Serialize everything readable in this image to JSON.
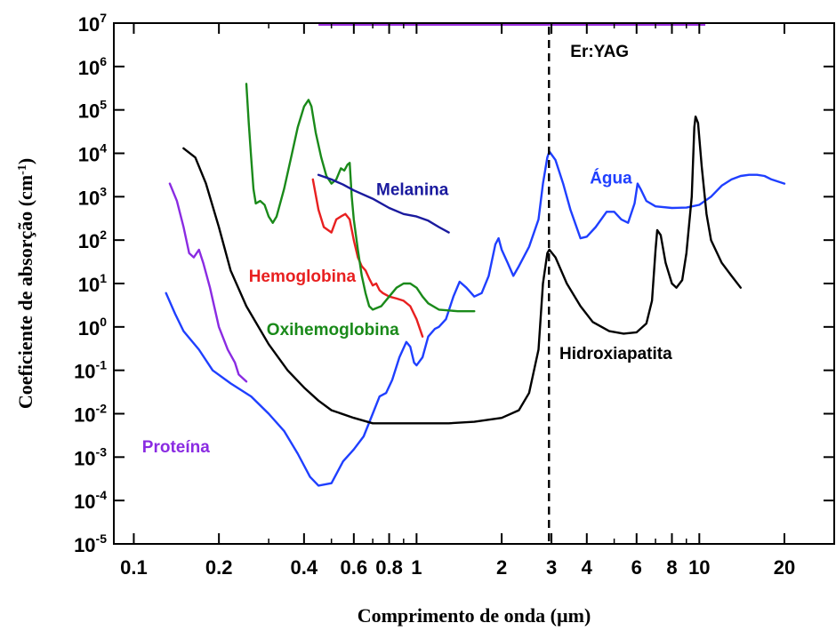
{
  "chart_data": {
    "type": "line",
    "xlabel": "Comprimento de onda (µm)",
    "ylabel_main": "Coeficiente de absorção (cm",
    "ylabel_sup": "-1",
    "ylabel_close": ")",
    "x_scale": "log",
    "y_scale": "log",
    "xlim": [
      0.085,
      30
    ],
    "ylim": [
      1e-05,
      10000000.0
    ],
    "grid": false,
    "x_ticks": [
      {
        "value": 0.1,
        "label": "0.1"
      },
      {
        "value": 0.2,
        "label": "0.2"
      },
      {
        "value": 0.4,
        "label": "0.4"
      },
      {
        "value": 0.6,
        "label": "0.6"
      },
      {
        "value": 0.8,
        "label": "0.8"
      },
      {
        "value": 1,
        "label": "1"
      },
      {
        "value": 2,
        "label": "2"
      },
      {
        "value": 3,
        "label": "3"
      },
      {
        "value": 4,
        "label": "4"
      },
      {
        "value": 6,
        "label": "6"
      },
      {
        "value": 8,
        "label": "8"
      },
      {
        "value": 10,
        "label": "10"
      },
      {
        "value": 20,
        "label": "20"
      }
    ],
    "y_ticks": [
      {
        "value": 1e-05,
        "base": "10",
        "exp": "-5"
      },
      {
        "value": 0.0001,
        "base": "10",
        "exp": "-4"
      },
      {
        "value": 0.001,
        "base": "10",
        "exp": "-3"
      },
      {
        "value": 0.01,
        "base": "10",
        "exp": "-2"
      },
      {
        "value": 0.1,
        "base": "10",
        "exp": "-1"
      },
      {
        "value": 1,
        "base": "10",
        "exp": "0"
      },
      {
        "value": 10,
        "base": "10",
        "exp": "1"
      },
      {
        "value": 100,
        "base": "10",
        "exp": "2"
      },
      {
        "value": 1000,
        "base": "10",
        "exp": "3"
      },
      {
        "value": 10000,
        "base": "10",
        "exp": "4"
      },
      {
        "value": 100000,
        "base": "10",
        "exp": "5"
      },
      {
        "value": 1000000,
        "base": "10",
        "exp": "6"
      },
      {
        "value": 10000000,
        "base": "10",
        "exp": "7"
      }
    ],
    "series": [
      {
        "name": "Proteína",
        "color": "#8a2be2",
        "points": [
          [
            0.134,
            2000
          ],
          [
            0.142,
            800
          ],
          [
            0.15,
            200
          ],
          [
            0.157,
            50
          ],
          [
            0.163,
            40
          ],
          [
            0.17,
            60
          ],
          [
            0.176,
            30
          ],
          [
            0.186,
            8
          ],
          [
            0.2,
            1
          ],
          [
            0.215,
            0.3
          ],
          [
            0.228,
            0.15
          ],
          [
            0.235,
            0.08
          ],
          [
            0.25,
            0.055
          ]
        ]
      },
      {
        "name": "Água",
        "color": "#1f3fff",
        "points": [
          [
            0.13,
            6
          ],
          [
            0.14,
            2
          ],
          [
            0.15,
            0.8
          ],
          [
            0.17,
            0.3
          ],
          [
            0.19,
            0.1
          ],
          [
            0.22,
            0.05
          ],
          [
            0.26,
            0.025
          ],
          [
            0.3,
            0.01
          ],
          [
            0.34,
            0.004
          ],
          [
            0.38,
            0.0012
          ],
          [
            0.42,
            0.00035
          ],
          [
            0.45,
            0.00022
          ],
          [
            0.5,
            0.00025
          ],
          [
            0.55,
            0.0008
          ],
          [
            0.6,
            0.0015
          ],
          [
            0.65,
            0.003
          ],
          [
            0.7,
            0.01
          ],
          [
            0.74,
            0.025
          ],
          [
            0.78,
            0.03
          ],
          [
            0.82,
            0.06
          ],
          [
            0.87,
            0.2
          ],
          [
            0.92,
            0.45
          ],
          [
            0.95,
            0.35
          ],
          [
            0.98,
            0.15
          ],
          [
            1.0,
            0.13
          ],
          [
            1.05,
            0.2
          ],
          [
            1.1,
            0.6
          ],
          [
            1.16,
            0.9
          ],
          [
            1.2,
            1.0
          ],
          [
            1.27,
            1.5
          ],
          [
            1.35,
            5
          ],
          [
            1.42,
            11
          ],
          [
            1.5,
            8
          ],
          [
            1.6,
            5
          ],
          [
            1.7,
            6
          ],
          [
            1.8,
            15
          ],
          [
            1.9,
            80
          ],
          [
            1.95,
            110
          ],
          [
            2.0,
            60
          ],
          [
            2.1,
            30
          ],
          [
            2.2,
            15
          ],
          [
            2.3,
            25
          ],
          [
            2.5,
            70
          ],
          [
            2.7,
            300
          ],
          [
            2.8,
            2000
          ],
          [
            2.9,
            8000
          ],
          [
            2.95,
            11000
          ],
          [
            3.1,
            7000
          ],
          [
            3.3,
            2000
          ],
          [
            3.5,
            500
          ],
          [
            3.8,
            110
          ],
          [
            4.0,
            120
          ],
          [
            4.3,
            200
          ],
          [
            4.7,
            450
          ],
          [
            5.0,
            450
          ],
          [
            5.3,
            300
          ],
          [
            5.6,
            250
          ],
          [
            5.9,
            700
          ],
          [
            6.05,
            2000
          ],
          [
            6.2,
            1500
          ],
          [
            6.5,
            800
          ],
          [
            7.0,
            600
          ],
          [
            8.0,
            550
          ],
          [
            9.0,
            560
          ],
          [
            10.0,
            650
          ],
          [
            11.0,
            1000
          ],
          [
            12.0,
            1800
          ],
          [
            13.0,
            2500
          ],
          [
            14.0,
            3000
          ],
          [
            15.0,
            3200
          ],
          [
            16.0,
            3200
          ],
          [
            17.0,
            3000
          ],
          [
            18.0,
            2500
          ],
          [
            20.0,
            2000
          ]
        ]
      },
      {
        "name": "Hidroxiapatita",
        "color": "#000000",
        "points": [
          [
            0.15,
            13000
          ],
          [
            0.165,
            8000
          ],
          [
            0.18,
            2000
          ],
          [
            0.2,
            200
          ],
          [
            0.22,
            20
          ],
          [
            0.25,
            3
          ],
          [
            0.3,
            0.4
          ],
          [
            0.35,
            0.1
          ],
          [
            0.4,
            0.04
          ],
          [
            0.45,
            0.02
          ],
          [
            0.5,
            0.012
          ],
          [
            0.6,
            0.008
          ],
          [
            0.7,
            0.006
          ],
          [
            0.8,
            0.006
          ],
          [
            1.0,
            0.006
          ],
          [
            1.3,
            0.006
          ],
          [
            1.6,
            0.0065
          ],
          [
            2.0,
            0.008
          ],
          [
            2.3,
            0.012
          ],
          [
            2.5,
            0.03
          ],
          [
            2.7,
            0.3
          ],
          [
            2.8,
            10
          ],
          [
            2.9,
            50
          ],
          [
            2.95,
            60
          ],
          [
            3.1,
            40
          ],
          [
            3.4,
            10
          ],
          [
            3.8,
            3
          ],
          [
            4.2,
            1.3
          ],
          [
            4.8,
            0.8
          ],
          [
            5.4,
            0.7
          ],
          [
            6.0,
            0.75
          ],
          [
            6.5,
            1.2
          ],
          [
            6.8,
            4
          ],
          [
            7.0,
            60
          ],
          [
            7.1,
            170
          ],
          [
            7.3,
            130
          ],
          [
            7.6,
            30
          ],
          [
            8.0,
            10
          ],
          [
            8.3,
            8
          ],
          [
            8.7,
            12
          ],
          [
            9.0,
            50
          ],
          [
            9.4,
            1000
          ],
          [
            9.6,
            40000
          ],
          [
            9.7,
            70000
          ],
          [
            9.9,
            50000
          ],
          [
            10.2,
            5000
          ],
          [
            10.6,
            400
          ],
          [
            11.0,
            100
          ],
          [
            12.0,
            30
          ],
          [
            13.0,
            15
          ],
          [
            14.0,
            8
          ]
        ]
      },
      {
        "name": "Hemoglobina",
        "color": "#e82020",
        "points": [
          [
            0.43,
            2500
          ],
          [
            0.45,
            500
          ],
          [
            0.47,
            200
          ],
          [
            0.5,
            150
          ],
          [
            0.52,
            300
          ],
          [
            0.54,
            350
          ],
          [
            0.56,
            400
          ],
          [
            0.58,
            300
          ],
          [
            0.6,
            100
          ],
          [
            0.62,
            40
          ],
          [
            0.64,
            25
          ],
          [
            0.66,
            20
          ],
          [
            0.68,
            13
          ],
          [
            0.7,
            9
          ],
          [
            0.72,
            10
          ],
          [
            0.74,
            7
          ],
          [
            0.76,
            6
          ],
          [
            0.8,
            5
          ],
          [
            0.85,
            4.5
          ],
          [
            0.9,
            4
          ],
          [
            0.95,
            3
          ],
          [
            1.0,
            1.5
          ],
          [
            1.05,
            0.6
          ]
        ]
      },
      {
        "name": "Oxihemoglobina",
        "color": "#1a8a1a",
        "points": [
          [
            0.25,
            400000
          ],
          [
            0.255,
            50000
          ],
          [
            0.26,
            8000
          ],
          [
            0.265,
            1500
          ],
          [
            0.27,
            700
          ],
          [
            0.28,
            800
          ],
          [
            0.29,
            650
          ],
          [
            0.3,
            350
          ],
          [
            0.31,
            250
          ],
          [
            0.32,
            350
          ],
          [
            0.34,
            1500
          ],
          [
            0.36,
            8000
          ],
          [
            0.38,
            40000
          ],
          [
            0.4,
            120000
          ],
          [
            0.415,
            170000
          ],
          [
            0.425,
            120000
          ],
          [
            0.44,
            30000
          ],
          [
            0.46,
            8000
          ],
          [
            0.48,
            3000
          ],
          [
            0.5,
            2000
          ],
          [
            0.52,
            2500
          ],
          [
            0.54,
            4500
          ],
          [
            0.555,
            4000
          ],
          [
            0.57,
            5500
          ],
          [
            0.58,
            6000
          ],
          [
            0.59,
            1000
          ],
          [
            0.6,
            300
          ],
          [
            0.62,
            60
          ],
          [
            0.64,
            15
          ],
          [
            0.66,
            6
          ],
          [
            0.68,
            3
          ],
          [
            0.7,
            2.5
          ],
          [
            0.75,
            3
          ],
          [
            0.8,
            5
          ],
          [
            0.85,
            8
          ],
          [
            0.9,
            10
          ],
          [
            0.95,
            10
          ],
          [
            1.0,
            8
          ],
          [
            1.05,
            5
          ],
          [
            1.1,
            3.5
          ],
          [
            1.2,
            2.5
          ],
          [
            1.4,
            2.3
          ],
          [
            1.6,
            2.3
          ]
        ]
      },
      {
        "name": "Melanina",
        "color": "#1a1a9e",
        "points": [
          [
            0.45,
            3200
          ],
          [
            0.5,
            2500
          ],
          [
            0.55,
            1900
          ],
          [
            0.6,
            1400
          ],
          [
            0.7,
            900
          ],
          [
            0.8,
            550
          ],
          [
            0.9,
            400
          ],
          [
            1.0,
            350
          ],
          [
            1.1,
            280
          ],
          [
            1.2,
            200
          ],
          [
            1.3,
            150
          ]
        ]
      }
    ],
    "vertical_line": {
      "x": 2.94,
      "label": "Er:YAG",
      "color": "#000000"
    },
    "top_band": {
      "x_start": 0.45,
      "x_end": 10.5,
      "color": "#9b30e0"
    },
    "annotations": [
      {
        "series": "Proteína",
        "text": "Proteína",
        "at": [
          0.107,
          0.0013
        ]
      },
      {
        "series": "Água",
        "text": "Água",
        "at": [
          4.1,
          2000
        ]
      },
      {
        "series": "Hidroxiapatita",
        "text": "Hidroxiapatita",
        "at": [
          3.2,
          0.18
        ]
      },
      {
        "series": "Hemoglobina",
        "text": "Hemoglobina",
        "at": [
          0.255,
          11
        ]
      },
      {
        "series": "Oxihemoglobina",
        "text": "Oxihemoglobina",
        "at": [
          0.295,
          0.65
        ]
      },
      {
        "series": "Melanina",
        "text": "Melanina",
        "at": [
          0.72,
          1100
        ]
      }
    ]
  }
}
